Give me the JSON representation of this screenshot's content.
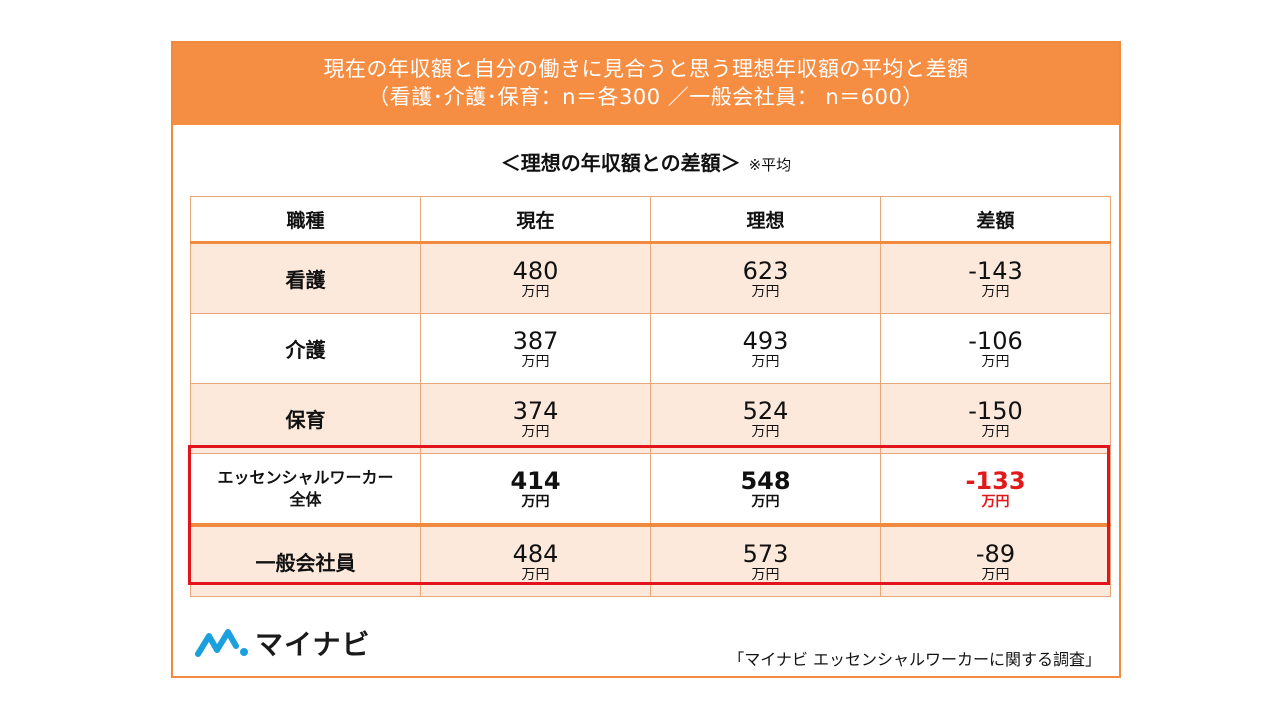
{
  "header": {
    "title_line1": "現在の年収額と自分の働きに見合うと思う理想年収額の平均と差額",
    "title_line2": "（看護･介護･保育：n＝各300 ／一般会社員： n＝600）"
  },
  "subtitle": {
    "text": "＜理想の年収額との差額＞",
    "note": "※平均"
  },
  "table": {
    "headers": [
      "職種",
      "現在",
      "理想",
      "差額"
    ],
    "unit": "万円",
    "rows": [
      {
        "label": "看護",
        "current": "480",
        "ideal": "623",
        "diff": "-143"
      },
      {
        "label": "介護",
        "current": "387",
        "ideal": "493",
        "diff": "-106"
      },
      {
        "label": "保育",
        "current": "374",
        "ideal": "524",
        "diff": "-150"
      },
      {
        "label_line1": "エッセンシャルワーカー",
        "label_line2": "全体",
        "current": "414",
        "ideal": "548",
        "diff": "-133"
      },
      {
        "label": "一般会社員",
        "current": "484",
        "ideal": "573",
        "diff": "-89"
      }
    ]
  },
  "logo": {
    "text": "マイナビ"
  },
  "source": "「マイナビ エッセンシャルワーカーに関する調査」",
  "colors": {
    "header_bg": "#f58d42",
    "row_shade": "#fce9dc",
    "highlight": "#e2141d",
    "negative_emphasis": "#e0191a"
  }
}
